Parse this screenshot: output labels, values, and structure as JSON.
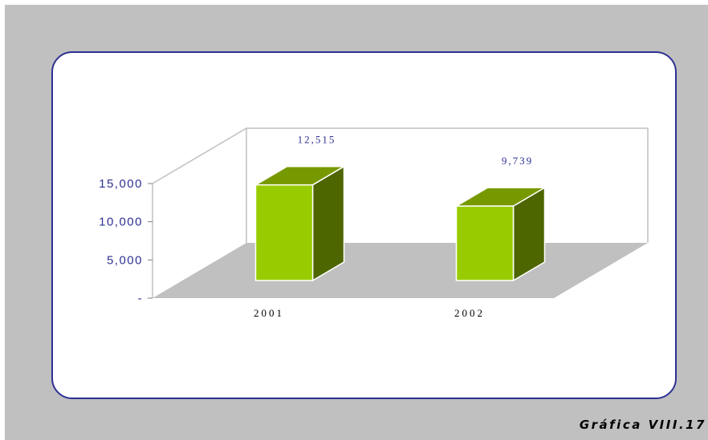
{
  "chart_data": {
    "type": "bar",
    "categories": [
      "2001",
      "2002"
    ],
    "values": [
      12515,
      9739
    ],
    "value_labels": [
      "12,515",
      "9,739"
    ],
    "y_ticks": [
      {
        "value": 0,
        "label": "-"
      },
      {
        "value": 5000,
        "label": "5,000"
      },
      {
        "value": 10000,
        "label": "10,000"
      },
      {
        "value": 15000,
        "label": "15,000"
      }
    ],
    "ylim": [
      0,
      15000
    ],
    "title": "",
    "xlabel": "",
    "ylabel": "",
    "style": "3d",
    "grid": false,
    "colors": {
      "bar_front": "#99cc00",
      "bar_top": "#779900",
      "bar_side": "#4d6600",
      "floor": "#c0c0c0",
      "wall_line": "#c0c0c0",
      "axis_text": "#2e3192",
      "label_text": "#2e3192"
    }
  },
  "caption": "Gráfica VIII.17"
}
